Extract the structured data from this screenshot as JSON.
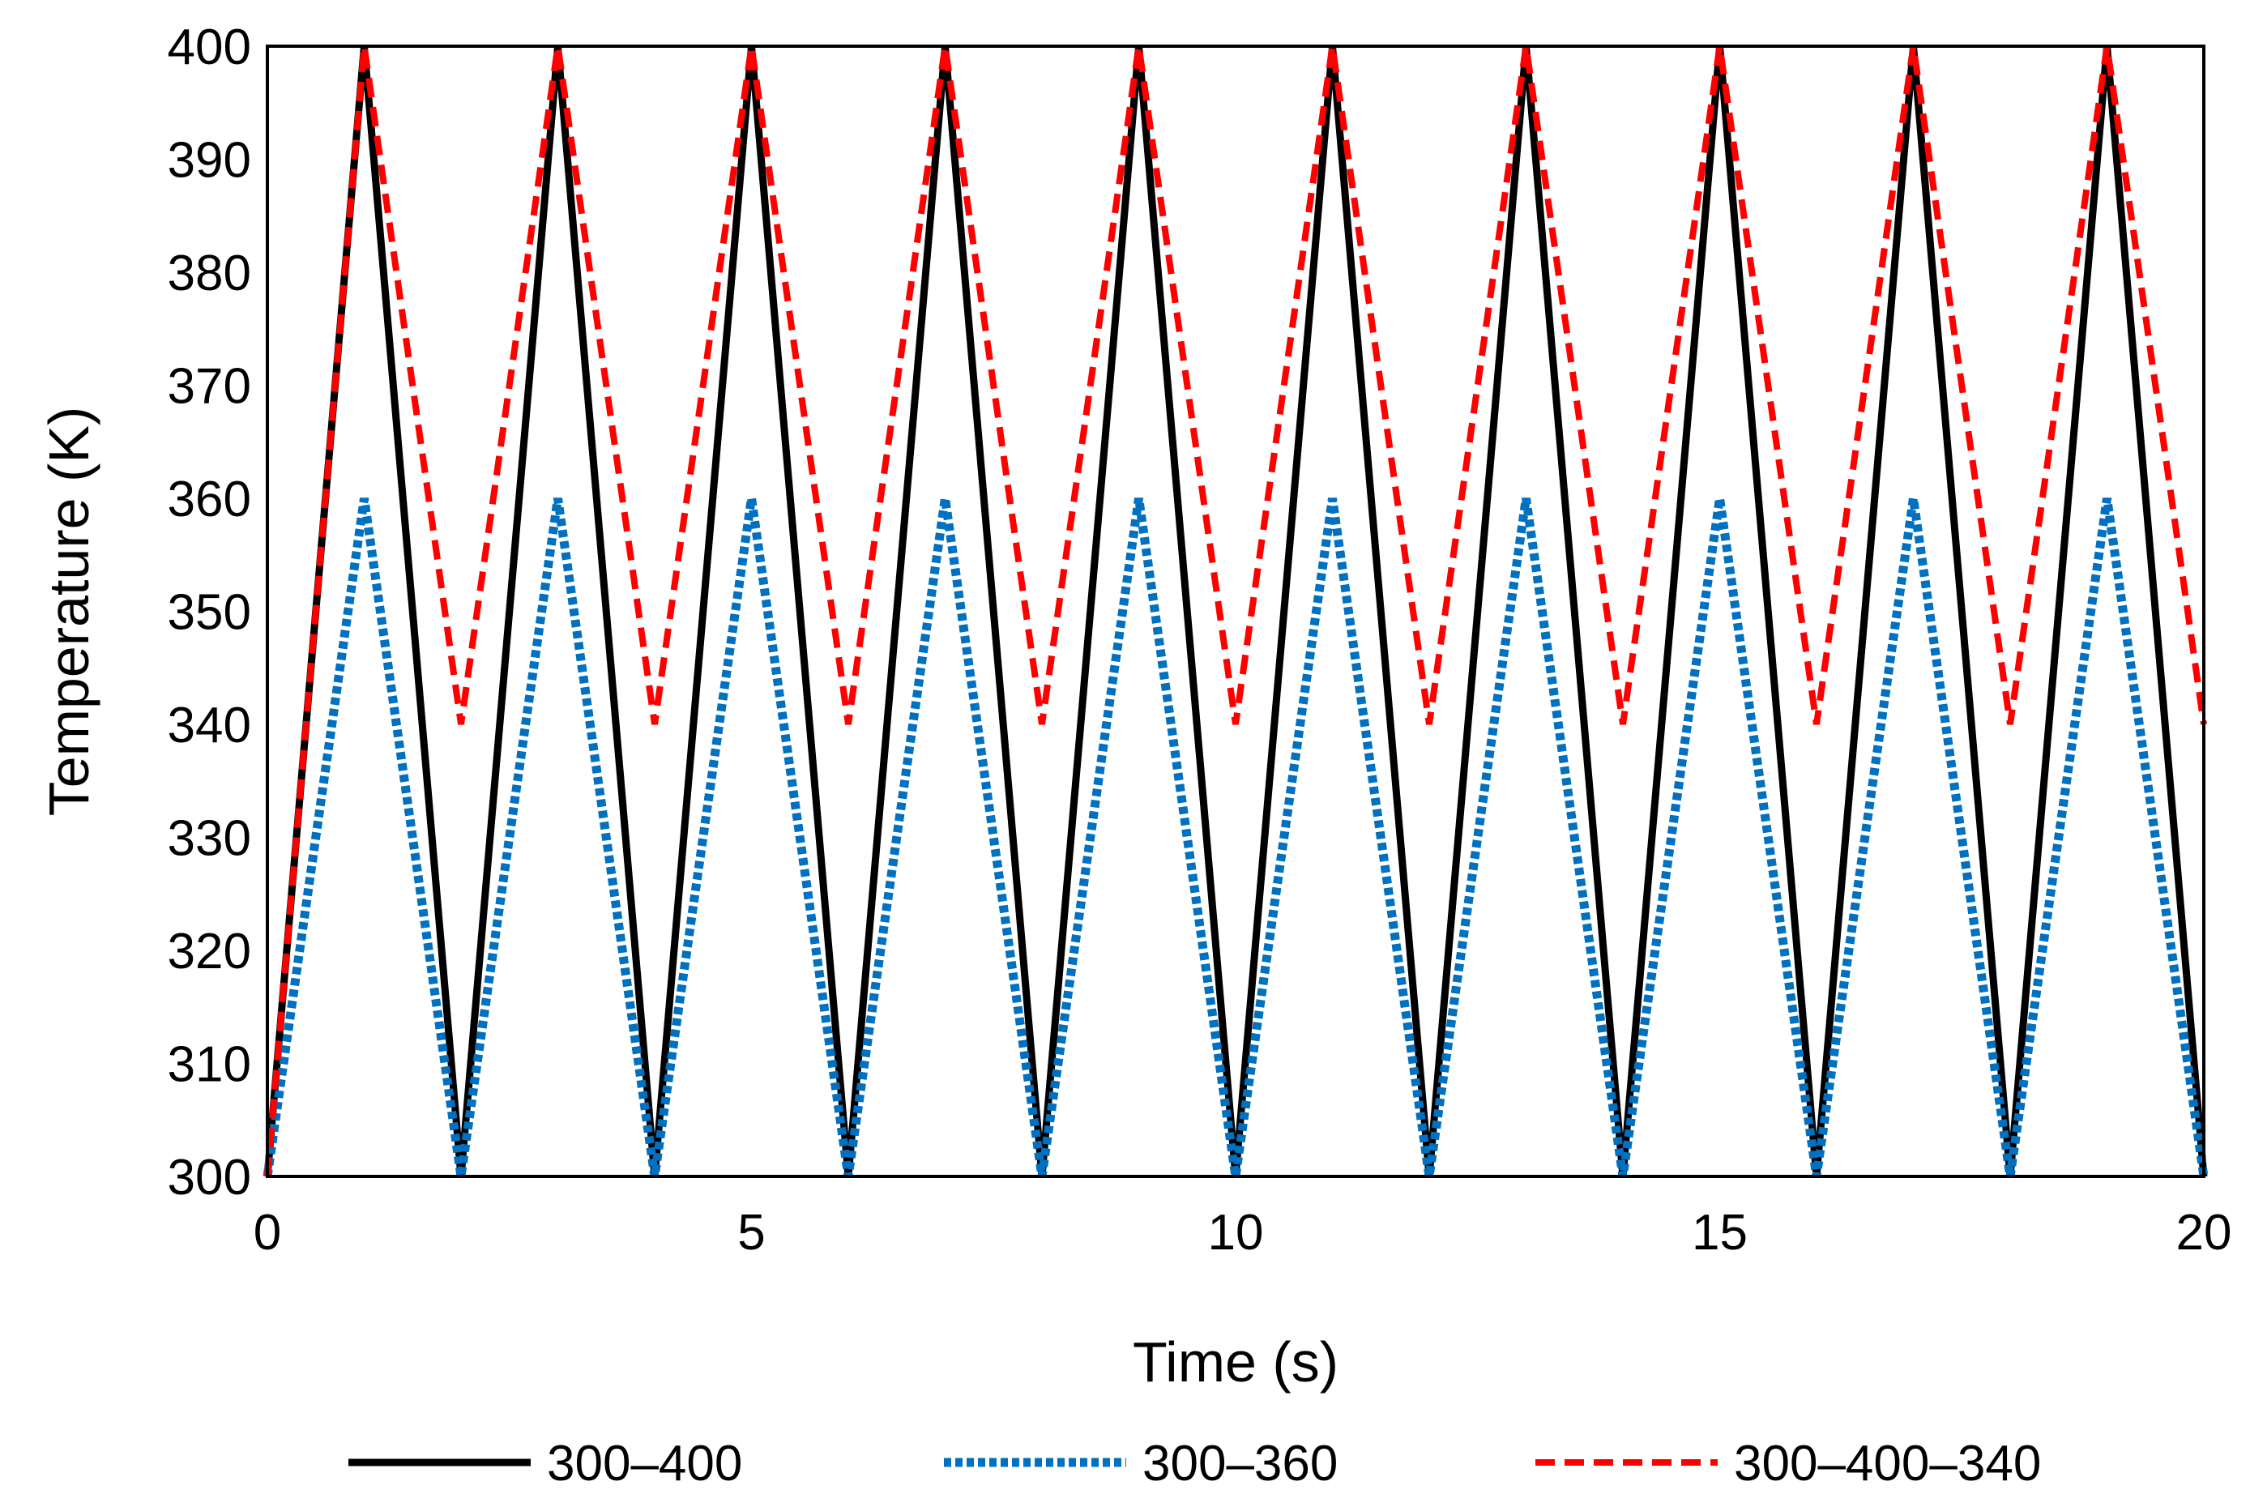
{
  "chart_data": {
    "type": "line",
    "title": "",
    "xlabel": "Time (s)",
    "ylabel": "Temperature (K)",
    "xlim": [
      0,
      20
    ],
    "ylim": [
      300,
      400
    ],
    "xticks": [
      0,
      5,
      10,
      15,
      20
    ],
    "yticks": [
      300,
      310,
      320,
      330,
      340,
      350,
      360,
      370,
      380,
      390,
      400
    ],
    "grid": false,
    "legend_position": "bottom",
    "series": [
      {
        "name": "300–400",
        "color": "#000000",
        "style": "solid",
        "x": [
          0,
          1,
          2,
          3,
          4,
          5,
          6,
          7,
          8,
          9,
          10,
          11,
          12,
          13,
          14,
          15,
          16,
          17,
          18,
          19,
          20
        ],
        "y": [
          300,
          400,
          300,
          400,
          300,
          400,
          300,
          400,
          300,
          400,
          300,
          400,
          300,
          400,
          300,
          400,
          300,
          400,
          300,
          400,
          300
        ]
      },
      {
        "name": "300–360",
        "color": "#0070C0",
        "style": "dotted",
        "x": [
          0,
          1,
          2,
          3,
          4,
          5,
          6,
          7,
          8,
          9,
          10,
          11,
          12,
          13,
          14,
          15,
          16,
          17,
          18,
          19,
          20
        ],
        "y": [
          300,
          360,
          300,
          360,
          300,
          360,
          300,
          360,
          300,
          360,
          300,
          360,
          300,
          360,
          300,
          360,
          300,
          360,
          300,
          360,
          300
        ]
      },
      {
        "name": "300–400–340",
        "color": "#FF0000",
        "style": "dashed",
        "x": [
          0,
          1,
          2,
          3,
          4,
          5,
          6,
          7,
          8,
          9,
          10,
          11,
          12,
          13,
          14,
          15,
          16,
          17,
          18,
          19,
          20
        ],
        "y": [
          300,
          400,
          340,
          400,
          340,
          400,
          340,
          400,
          340,
          400,
          340,
          400,
          340,
          400,
          340,
          400,
          340,
          400,
          340,
          400,
          340
        ]
      }
    ]
  }
}
